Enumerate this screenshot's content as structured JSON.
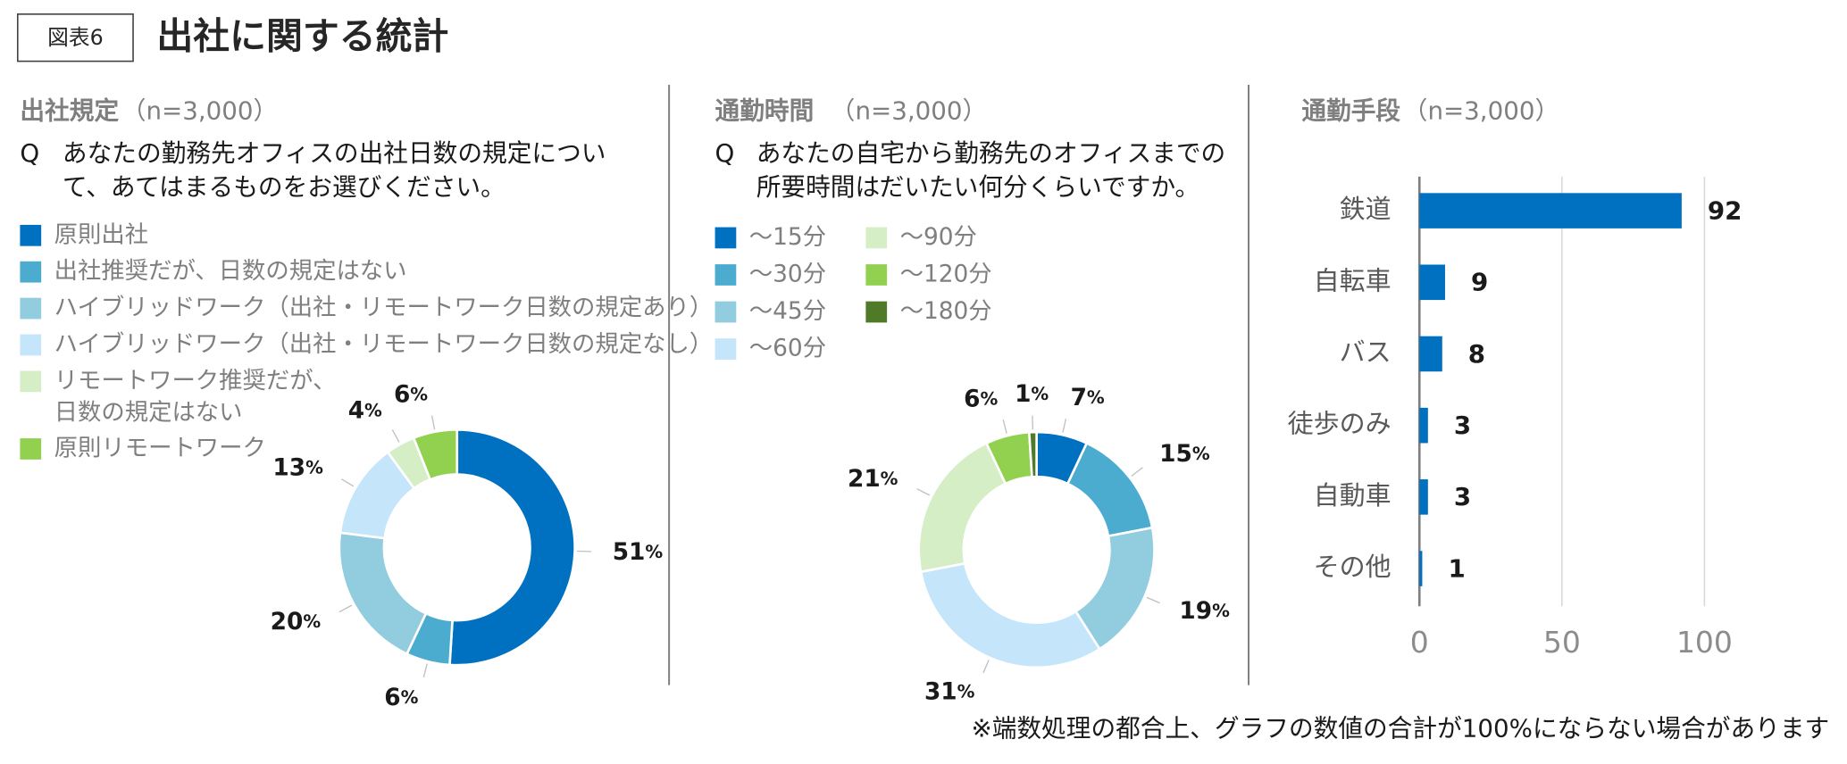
{
  "header": {
    "badge": "図表6",
    "title": "出社に関する統計"
  },
  "footnote": "※端数処理の都合上、グラフの数値の合計が100%にならない場合があります",
  "chart_data": [
    {
      "type": "donut",
      "title": "出社規定",
      "sample_note": "（n=3,000）",
      "question_marker": "Q",
      "question": [
        "あなたの勤務先オフィスの出社日数の規定につい",
        "て、あてはまるものをお選びください。"
      ],
      "categories": [
        "原則出社",
        "出社推奨だが、日数の規定はない",
        "ハイブリッドワーク（出社・リモートワーク日数の規定あり）",
        "ハイブリッドワーク（出社・リモートワーク日数の規定なし）",
        [
          "リモートワーク推奨だが、",
          "日数の規定はない"
        ],
        "原則リモートワーク"
      ],
      "values": [
        51,
        6,
        20,
        13,
        4,
        6
      ],
      "colors": [
        "#0070c0",
        "#4bacd0",
        "#92cddf",
        "#c5e5fb",
        "#d5eec5",
        "#92d050"
      ],
      "value_suffix": "%"
    },
    {
      "type": "donut",
      "title": "通勤時間",
      "sample_note": "（n=3,000）",
      "question_marker": "Q",
      "question": [
        "あなたの自宅から勤務先のオフィスまでの",
        "所要時間はだいたい何分くらいですか。"
      ],
      "categories": [
        "～15分",
        "～30分",
        "～45分",
        "～60分",
        "～90分",
        "～120分",
        "～180分"
      ],
      "values": [
        7,
        15,
        19,
        31,
        21,
        6,
        1
      ],
      "colors": [
        "#0070c0",
        "#4bacd0",
        "#92cddf",
        "#c5e5fb",
        "#d5eec5",
        "#92d050",
        "#4f7a28"
      ],
      "value_suffix": "%"
    },
    {
      "type": "barh",
      "title": "通勤手段",
      "sample_note": "（n=3,000）",
      "categories": [
        "鉄道",
        "自転車",
        "バス",
        "徒歩のみ",
        "自動車",
        "その他"
      ],
      "values": [
        92,
        9,
        8,
        3,
        3,
        1
      ],
      "color": "#0070c0",
      "xlim": [
        0,
        100
      ],
      "xticks": [
        0,
        50,
        100
      ],
      "grid": true
    }
  ]
}
